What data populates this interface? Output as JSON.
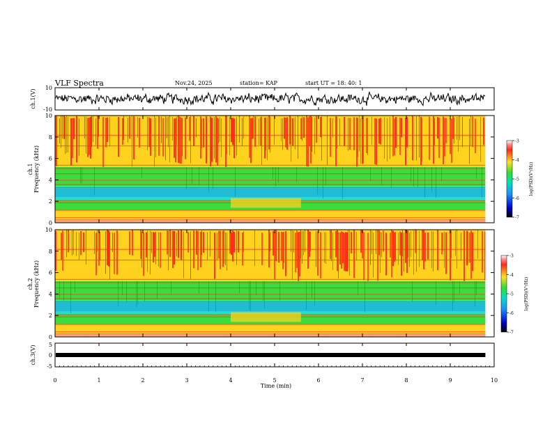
{
  "header": {
    "title": "VLF Spectra",
    "date": "Nov.24, 2025",
    "station": "station= KAP",
    "start": "start  UT =  18: 40: 1"
  },
  "chart_data": [
    {
      "type": "line",
      "name": "ch1-waveform",
      "ylabel": "ch.1(V)",
      "ylim": [
        -10,
        10
      ],
      "xlim": [
        0,
        10
      ],
      "ytick_top": "10",
      "ytick_bottom": "-10",
      "samples_description": "noisy voltage trace around -4 to 4 V"
    },
    {
      "type": "heatmap",
      "name": "ch1-spectrogram",
      "ylabel_line1": "ch.1",
      "ylabel_line2": "Frequency (kHz)",
      "ylim": [
        0,
        10
      ],
      "xlim": [
        0,
        9.8
      ],
      "yticks": [
        "0",
        "2",
        "4",
        "6",
        "8",
        "10"
      ],
      "colorbar": {
        "label": "log(PSD)(V²/Hz)",
        "range": [
          -7,
          -3
        ],
        "ticks": [
          "-3",
          "-4",
          "-5",
          "-6",
          "-7"
        ]
      }
    },
    {
      "type": "heatmap",
      "name": "ch2-spectrogram",
      "ylabel_line1": "ch.2",
      "ylabel_line2": "Frequency (kHz)",
      "ylim": [
        0,
        10
      ],
      "xlim": [
        0,
        9.8
      ],
      "yticks": [
        "0",
        "2",
        "4",
        "6",
        "8",
        "10"
      ],
      "colorbar": {
        "label": "log(PSD)(V²/Hz)",
        "range": [
          -7,
          -3
        ],
        "ticks": [
          "-3",
          "-4",
          "-5",
          "-6",
          "-7"
        ]
      }
    },
    {
      "type": "line",
      "name": "ch3-waveform",
      "ylabel": "ch.3(V)",
      "ylim": [
        -5,
        5
      ],
      "xlim": [
        0,
        10
      ],
      "yticks": [
        "5",
        "0",
        "-5"
      ],
      "value": 0
    }
  ],
  "xaxis": {
    "label": "Time (min)",
    "range": [
      0,
      10
    ],
    "ticks": [
      "0",
      "1",
      "2",
      "3",
      "4",
      "5",
      "6",
      "7",
      "8",
      "9",
      "10"
    ]
  },
  "colors": {
    "red": "#ff2a1a",
    "yellow": "#ffd21e",
    "green": "#3cdc3c",
    "cyan": "#22e0c8",
    "blue": "#1f8fe6"
  }
}
